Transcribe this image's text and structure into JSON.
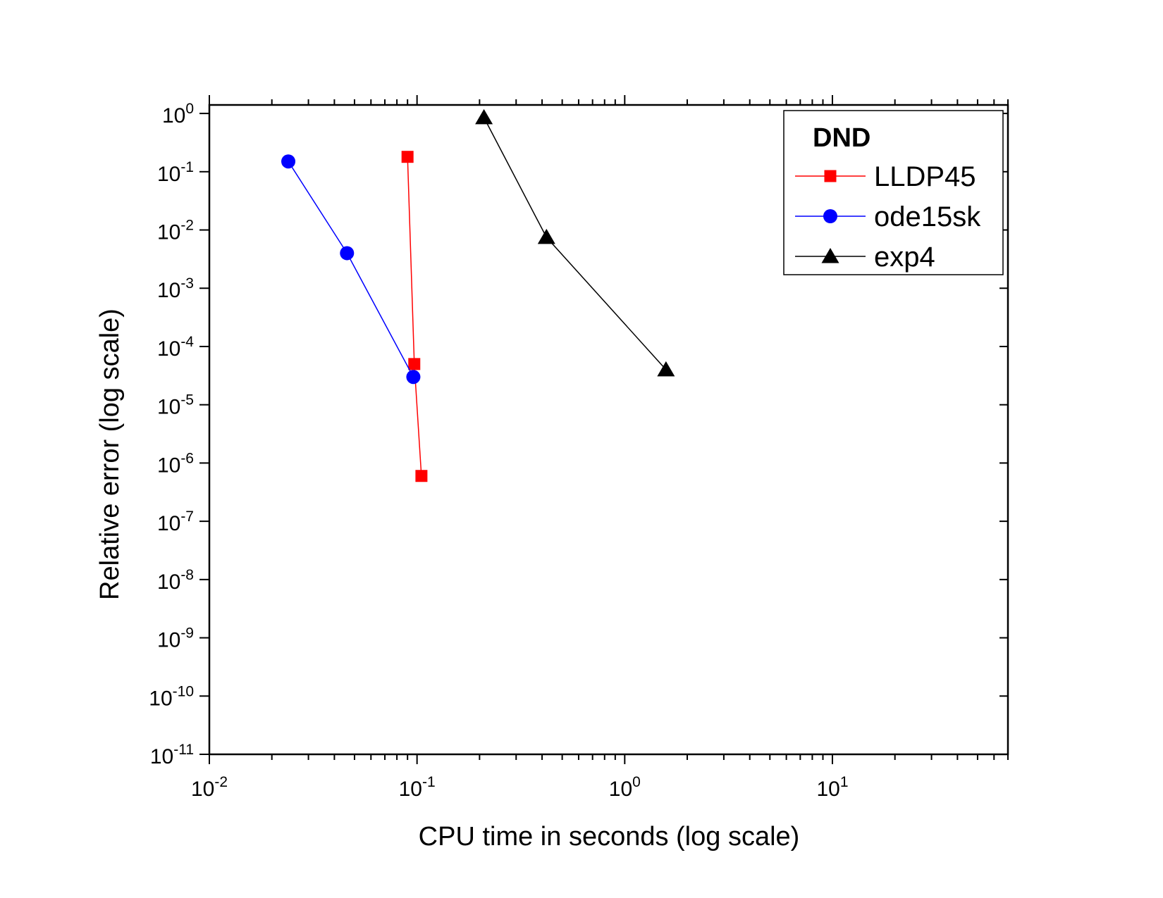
{
  "chart_data": {
    "type": "line",
    "xlabel": "CPU time in seconds (log scale)",
    "ylabel": "Relative error (log scale)",
    "x_scale": "log",
    "y_scale": "log",
    "xlim": [
      0.01,
      70
    ],
    "ylim": [
      1e-11,
      1.4
    ],
    "x_ticks": [
      {
        "value": 0.01,
        "base": "10",
        "exp": "-2"
      },
      {
        "value": 0.1,
        "base": "10",
        "exp": "-1"
      },
      {
        "value": 1,
        "base": "10",
        "exp": "0"
      },
      {
        "value": 10,
        "base": "10",
        "exp": "1"
      }
    ],
    "y_ticks": [
      {
        "value": 1,
        "base": "10",
        "exp": "0"
      },
      {
        "value": 0.1,
        "base": "10",
        "exp": "-1"
      },
      {
        "value": 0.01,
        "base": "10",
        "exp": "-2"
      },
      {
        "value": 0.001,
        "base": "10",
        "exp": "-3"
      },
      {
        "value": 0.0001,
        "base": "10",
        "exp": "-4"
      },
      {
        "value": 1e-05,
        "base": "10",
        "exp": "-5"
      },
      {
        "value": 1e-06,
        "base": "10",
        "exp": "-6"
      },
      {
        "value": 1e-07,
        "base": "10",
        "exp": "-7"
      },
      {
        "value": 1e-08,
        "base": "10",
        "exp": "-8"
      },
      {
        "value": 1e-09,
        "base": "10",
        "exp": "-9"
      },
      {
        "value": 1e-10,
        "base": "10",
        "exp": "-10"
      },
      {
        "value": 1e-11,
        "base": "10",
        "exp": "-11"
      }
    ],
    "grid": false,
    "legend": {
      "placement": "top-right",
      "title": "DND"
    },
    "series": [
      {
        "name": "LLDP45",
        "color": "#ff0000",
        "marker": "square",
        "points": [
          {
            "x": 0.09,
            "y": 0.18
          },
          {
            "x": 0.097,
            "y": 5e-05
          },
          {
            "x": 0.105,
            "y": 6e-07
          }
        ]
      },
      {
        "name": "ode15sk",
        "color": "#0000ff",
        "marker": "circle",
        "points": [
          {
            "x": 0.024,
            "y": 0.15
          },
          {
            "x": 0.046,
            "y": 0.004
          },
          {
            "x": 0.096,
            "y": 3e-05
          }
        ]
      },
      {
        "name": "exp4",
        "color": "#000000",
        "marker": "triangle",
        "points": [
          {
            "x": 0.21,
            "y": 0.85
          },
          {
            "x": 0.42,
            "y": 0.0075
          },
          {
            "x": 1.58,
            "y": 4e-05
          }
        ]
      }
    ]
  }
}
